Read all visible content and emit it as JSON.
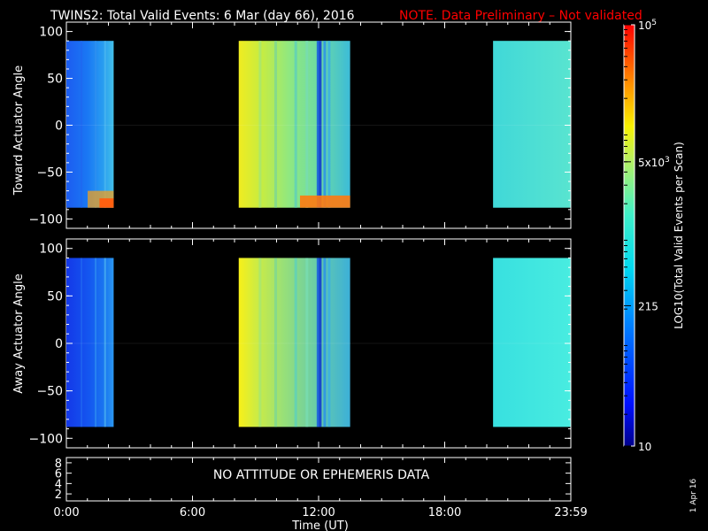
{
  "header": {
    "title": "TWINS2: Total Valid Events:  6 Mar (day  66), 2016",
    "note": "NOTE. Data Preliminary – Not validated",
    "note_color": "#ff0000"
  },
  "chart_data": [
    {
      "type": "heatmap",
      "panel": "top",
      "ylabel": "Toward Actuator Angle",
      "ylim": [
        -110,
        110
      ],
      "yticks": [
        "100",
        "50",
        "0",
        "−50",
        "−100"
      ],
      "ytick_values": [
        100,
        50,
        0,
        -50,
        -100
      ],
      "xlim_hours": [
        0,
        24
      ],
      "coverage_hours": [
        [
          0.0,
          2.25
        ],
        [
          8.2,
          13.5
        ],
        [
          20.3,
          23.98
        ]
      ],
      "angle_range": [
        -88,
        90
      ]
    },
    {
      "type": "heatmap",
      "panel": "middle",
      "ylabel": "Away Actuator Angle",
      "ylim": [
        -110,
        110
      ],
      "yticks": [
        "100",
        "50",
        "0",
        "−50",
        "−100"
      ],
      "ytick_values": [
        100,
        50,
        0,
        -50,
        -100
      ],
      "xlim_hours": [
        0,
        24
      ],
      "coverage_hours": [
        [
          0.0,
          2.25
        ],
        [
          8.2,
          13.5
        ],
        [
          20.3,
          23.98
        ]
      ],
      "angle_range": [
        -88,
        90
      ]
    }
  ],
  "bottom_panel": {
    "yticks": [
      "8",
      "6",
      "4",
      "2"
    ],
    "ytick_values": [
      8,
      6,
      4,
      2
    ],
    "message": "NO ATTITUDE OR EPHEMERIS DATA"
  },
  "xaxis": {
    "ticks": [
      "0:00",
      "6:00",
      "12:00",
      "18:00",
      "23:59"
    ],
    "tick_hours": [
      0,
      6,
      12,
      18,
      24
    ],
    "label": "Time (UT)"
  },
  "colorbar": {
    "label": "LOG10(Total Valid Events per Scan)",
    "ticks": [
      {
        "text": "10",
        "value": 10
      },
      {
        "text": "215",
        "value": 215
      },
      {
        "text": "5x10^3",
        "value": 5000
      },
      {
        "text": "10^5",
        "value": 100000
      }
    ],
    "range": [
      10,
      100000
    ]
  },
  "date_stamp": "1 Apr 16"
}
